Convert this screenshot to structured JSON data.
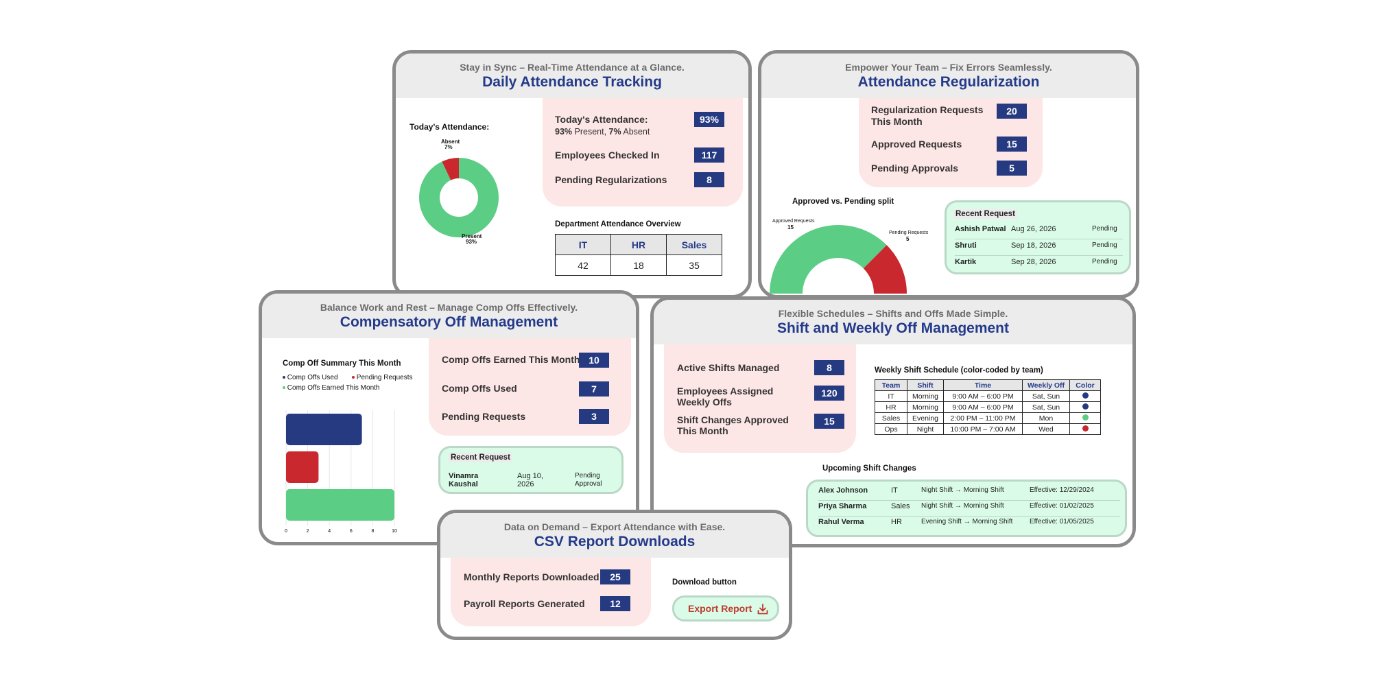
{
  "daily": {
    "subtitle": "Stay in Sync – Real-Time Attendance at a Glance.",
    "title": "Daily Attendance Tracking",
    "chart_label": "Today's Attendance:",
    "absent_label": "Absent",
    "absent_pct": "7%",
    "present_label": "Present",
    "present_pct": "93%",
    "stats": {
      "today_label": "Today's Attendance:",
      "today_value": "93%",
      "today_present_bold": "93%",
      "today_present_text": " Present, ",
      "today_absent_bold": "7%",
      "today_absent_text": " Absent",
      "checked_in_label": "Employees Checked In",
      "checked_in_value": "117",
      "pending_label": "Pending Regularizations",
      "pending_value": "8"
    },
    "dept_title": "Department Attendance Overview",
    "dept_headers": [
      "IT",
      "HR",
      "Sales"
    ],
    "dept_values": [
      "42",
      "18",
      "35"
    ]
  },
  "regularization": {
    "subtitle": "Empower Your Team – Fix Errors Seamlessly.",
    "title": "Attendance Regularization",
    "stats": {
      "requests_label": "Regularization Requests This Month",
      "requests_value": "20",
      "approved_label": "Approved Requests",
      "approved_value": "15",
      "pending_label": "Pending Approvals",
      "pending_value": "5"
    },
    "chart_title": "Approved vs. Pending split",
    "approved_label": "Approved Requests",
    "approved_value": "15",
    "pending_label": "Pending Requests",
    "pending_value": "5",
    "recent_title": "Recent Request",
    "recent": [
      {
        "name": "Ashish Patwal",
        "date": "Aug 26, 2026",
        "status": "Pending"
      },
      {
        "name": "Shruti",
        "date": "Sep 18, 2026",
        "status": "Pending"
      },
      {
        "name": "Kartik",
        "date": "Sep 28, 2026",
        "status": "Pending"
      }
    ]
  },
  "compoff": {
    "subtitle": "Balance Work and Rest – Manage Comp Offs Effectively.",
    "title": "Compensatory Off Management",
    "chart_title": "Comp Off Summary This Month",
    "legend": [
      "Comp Offs Used",
      "Pending Requests",
      "Comp Offs Earned This Month"
    ],
    "stats": {
      "earned_label": "Comp Offs Earned This Month",
      "earned_value": "10",
      "used_label": "Comp Offs Used",
      "used_value": "7",
      "pending_label": "Pending Requests",
      "pending_value": "3"
    },
    "recent_title": "Recent Request",
    "recent": {
      "name": "Vinamra Kaushal",
      "date": "Aug 10, 2026",
      "status": "Pending Approval"
    }
  },
  "shift": {
    "subtitle": "Flexible Schedules – Shifts and Offs Made Simple.",
    "title": "Shift and Weekly Off Management",
    "stats": {
      "active_label": "Active Shifts Managed",
      "active_value": "8",
      "assigned_label": "Employees Assigned Weekly Offs",
      "assigned_value": "120",
      "changes_label": "Shift Changes Approved This Month",
      "changes_value": "15"
    },
    "schedule_title": "Weekly Shift Schedule (color-coded by team)",
    "schedule_headers": [
      "Team",
      "Shift",
      "Time",
      "Weekly Off",
      "Color"
    ],
    "schedule_rows": [
      {
        "team": "IT",
        "shift": "Morning",
        "time": "9:00 AM – 6:00 PM",
        "off": "Sat, Sun",
        "color": "#263a82"
      },
      {
        "team": "HR",
        "shift": "Morning",
        "time": "9:00 AM – 6:00 PM",
        "off": "Sat, Sun",
        "color": "#263a82"
      },
      {
        "team": "Sales",
        "shift": "Evening",
        "time": "2:00 PM – 11:00 PM",
        "off": "Mon",
        "color": "#5ccd85"
      },
      {
        "team": "Ops",
        "shift": "Night",
        "time": "10:00 PM – 7:00 AM",
        "off": "Wed",
        "color": "#c8282e"
      }
    ],
    "upcoming_title": "Upcoming Shift Changes",
    "upcoming": [
      {
        "name": "Alex Johnson",
        "team": "IT",
        "change": "Night Shift → Morning Shift",
        "effective": "Effective: 12/29/2024"
      },
      {
        "name": "Priya Sharma",
        "team": "Sales",
        "change": "Night Shift → Morning Shift",
        "effective": "Effective: 01/02/2025"
      },
      {
        "name": "Rahul Verma",
        "team": "HR",
        "change": "Evening Shift → Morning Shift",
        "effective": "Effective: 01/05/2025"
      }
    ]
  },
  "csv": {
    "subtitle": "Data on Demand – Export Attendance with Ease.",
    "title": "CSV Report Downloads",
    "stats": {
      "monthly_label": "Monthly Reports Downloaded",
      "monthly_value": "25",
      "payroll_label": "Payroll Reports Generated",
      "payroll_value": "12"
    },
    "download_label": "Download button",
    "export_label": "Export Report"
  },
  "colors": {
    "navy": "#263a82",
    "red": "#c8282e",
    "green": "#5ccd85",
    "pink": "#fde6e6",
    "mint": "#d9fbe8"
  },
  "chart_data": [
    {
      "type": "pie",
      "title": "",
      "categories": [
        "Present",
        "Absent"
      ],
      "values": [
        93,
        7
      ]
    },
    {
      "type": "pie",
      "title": "Approved vs. Pending split",
      "categories": [
        "Approved Requests",
        "Pending Requests"
      ],
      "values": [
        15,
        5
      ]
    },
    {
      "type": "bar",
      "title": "Comp Off Summary This Month",
      "orientation": "horizontal",
      "categories": [
        "Comp Offs Used",
        "Pending Requests",
        "Comp Offs Earned This Month"
      ],
      "values": [
        7,
        3,
        10
      ],
      "xlim": [
        0,
        10
      ],
      "ticks": [
        "0",
        "2",
        "4",
        "6",
        "8",
        "10"
      ]
    }
  ]
}
